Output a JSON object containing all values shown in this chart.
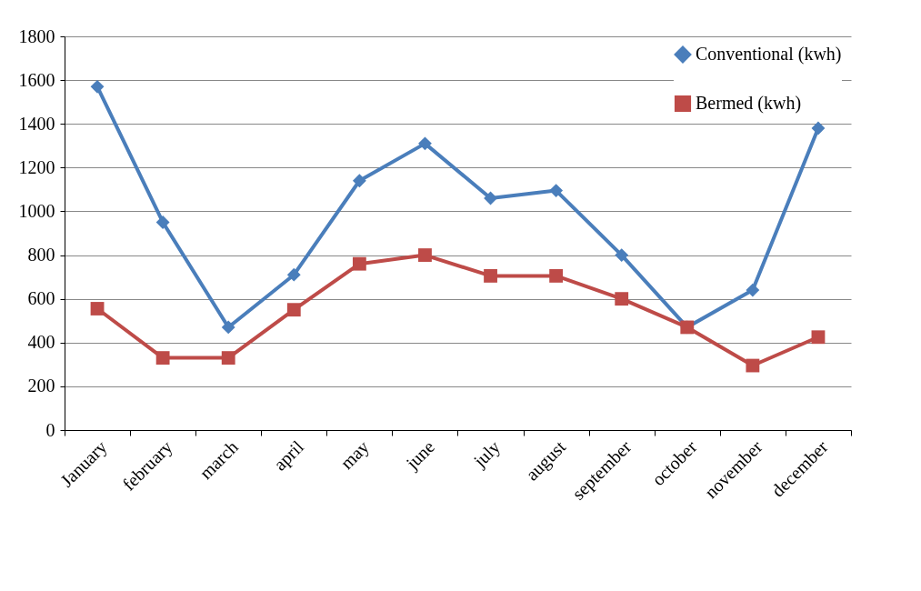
{
  "chart_data": {
    "type": "line",
    "categories": [
      "January",
      "february",
      "march",
      "april",
      "may",
      "june",
      "july",
      "august",
      "september",
      "october",
      "november",
      "december"
    ],
    "series": [
      {
        "name": "Conventional (kwh)",
        "color": "#4a7ebb",
        "marker": "diamond",
        "values": [
          1570,
          950,
          470,
          710,
          1140,
          1310,
          1060,
          1095,
          800,
          470,
          640,
          1380
        ]
      },
      {
        "name": "Bermed (kwh)",
        "color": "#be4b48",
        "marker": "square",
        "values": [
          555,
          330,
          330,
          550,
          760,
          800,
          705,
          705,
          600,
          470,
          295,
          425
        ]
      }
    ],
    "ylim": [
      0,
      1800
    ],
    "yticks": [
      0,
      200,
      400,
      600,
      800,
      1000,
      1200,
      1400,
      1600,
      1800
    ],
    "grid": "y",
    "legend": "top right",
    "line_style": "solid"
  }
}
